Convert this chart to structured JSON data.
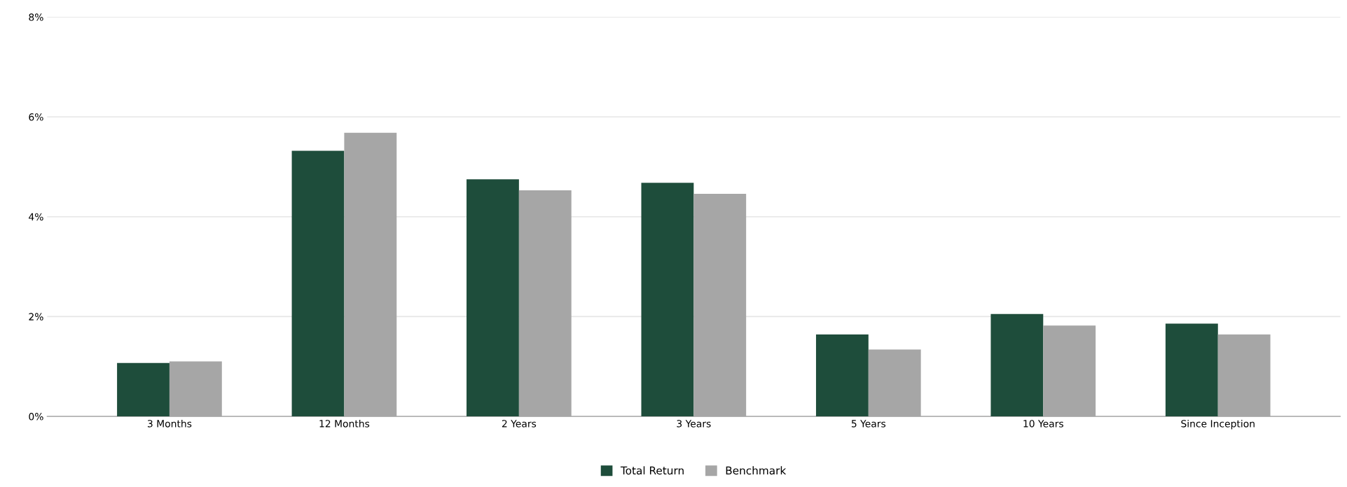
{
  "chart_data": {
    "type": "bar",
    "categories": [
      "3 Months",
      "12 Months",
      "2 Years",
      "3 Years",
      "5 Years",
      "10 Years",
      "Since Inception"
    ],
    "series": [
      {
        "name": "Total Return",
        "color": "#1e4d3b",
        "values": [
          1.07,
          5.32,
          4.75,
          4.68,
          1.64,
          2.05,
          1.86
        ]
      },
      {
        "name": "Benchmark",
        "color": "#a6a6a6",
        "values": [
          1.1,
          5.68,
          4.53,
          4.46,
          1.34,
          1.82,
          1.64
        ]
      }
    ],
    "ylim": [
      0,
      8
    ],
    "yticks": [
      {
        "value": 0,
        "label": "0%"
      },
      {
        "value": 2,
        "label": "2%"
      },
      {
        "value": 4,
        "label": "4%"
      },
      {
        "value": 6,
        "label": "6%"
      },
      {
        "value": 8,
        "label": "8%"
      }
    ],
    "grid": "y",
    "legend": "bottom"
  }
}
